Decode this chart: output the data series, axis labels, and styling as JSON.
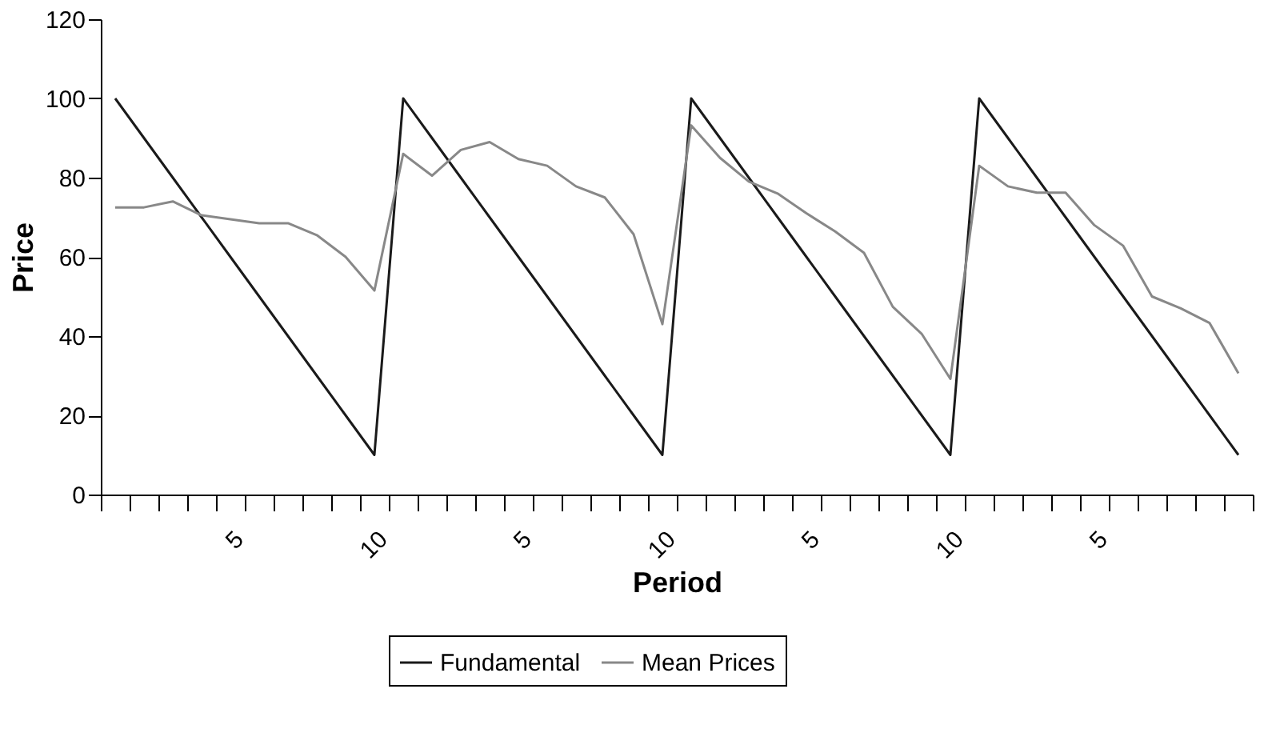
{
  "chart_data": {
    "type": "line",
    "xlabel": "Period",
    "ylabel": "Price",
    "categories": [
      null,
      null,
      null,
      null,
      "5",
      null,
      null,
      null,
      null,
      "10",
      null,
      null,
      null,
      null,
      "5",
      null,
      null,
      null,
      null,
      "10",
      null,
      null,
      null,
      null,
      "5",
      null,
      null,
      null,
      null,
      "10",
      null,
      null,
      null,
      null,
      "5",
      null,
      null,
      null,
      null,
      null
    ],
    "series": [
      {
        "name": "Fundamental",
        "color": "#1a1a1a",
        "values": [
          100,
          90,
          80,
          70,
          60,
          50,
          40,
          30,
          20,
          10,
          100,
          90,
          80,
          70,
          60,
          50,
          40,
          30,
          20,
          10,
          100,
          90,
          80,
          70,
          60,
          50,
          40,
          30,
          20,
          10,
          100,
          90,
          80,
          70,
          60,
          50,
          40,
          30,
          20,
          10
        ]
      },
      {
        "name": "Mean Prices",
        "color": "#888888",
        "values": [
          72.5,
          72.5,
          74,
          70.5,
          69.5,
          68.5,
          68.5,
          65.5,
          60,
          51.5,
          86,
          80.5,
          87,
          89,
          84.7,
          83,
          77.8,
          75,
          65.7,
          43,
          93.2,
          85,
          79,
          76,
          71,
          66.4,
          61,
          47.4,
          40.6,
          29.2,
          83,
          77.8,
          76.2,
          76.2,
          68,
          62.8,
          50,
          47,
          43.3,
          30.6
        ]
      }
    ],
    "ylim": [
      0,
      120
    ],
    "yticks": [
      0,
      20,
      40,
      60,
      80,
      100,
      120
    ],
    "grid": false,
    "legend": "bottom",
    "marker": "none",
    "line_style": "solid"
  }
}
